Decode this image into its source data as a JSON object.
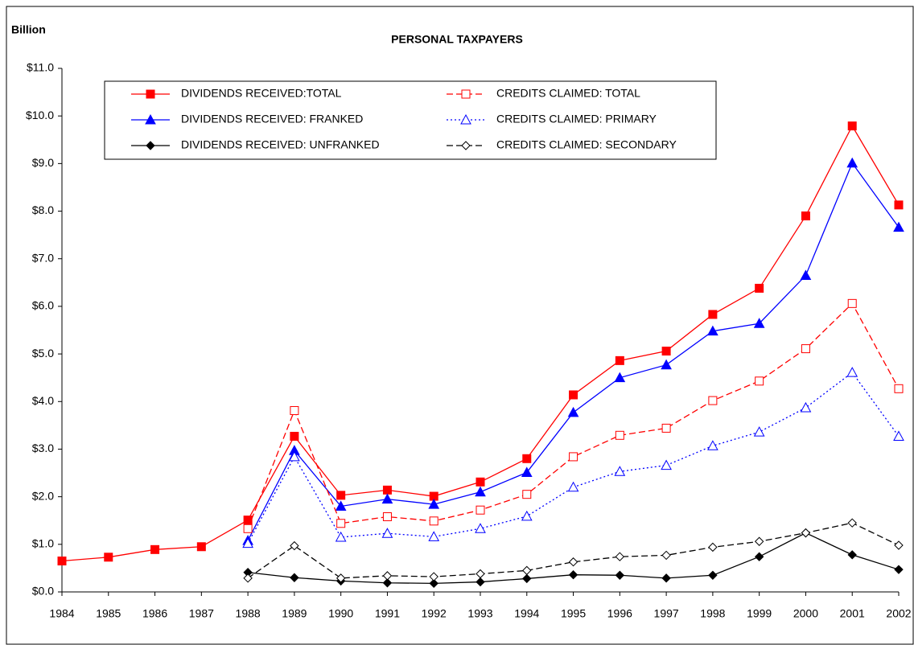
{
  "chart_data": {
    "type": "line",
    "title": "PERSONAL TAXPAYERS",
    "y_label": "Billion",
    "categories": [
      "1984",
      "1985",
      "1986",
      "1987",
      "1988",
      "1989",
      "1990",
      "1991",
      "1992",
      "1993",
      "1994",
      "1995",
      "1996",
      "1997",
      "1998",
      "1999",
      "2000",
      "2001",
      "2002"
    ],
    "series": [
      {
        "name": "DIVIDENDS RECEIVED:TOTAL",
        "color": "#ff0000",
        "marker": "square",
        "filled": true,
        "dash": "solid",
        "values": [
          0.65,
          0.73,
          0.89,
          0.95,
          1.51,
          3.27,
          2.03,
          2.14,
          2.01,
          2.31,
          2.8,
          4.14,
          4.86,
          5.06,
          5.83,
          6.38,
          7.9,
          9.79,
          8.13
        ]
      },
      {
        "name": "DIVIDENDS RECEIVED: FRANKED",
        "color": "#0000ff",
        "marker": "triangle",
        "filled": true,
        "dash": "solid",
        "values": [
          null,
          null,
          null,
          null,
          1.08,
          2.97,
          1.8,
          1.95,
          1.84,
          2.1,
          2.51,
          3.77,
          4.5,
          4.77,
          5.48,
          5.64,
          6.65,
          9.01,
          7.66
        ]
      },
      {
        "name": "DIVIDENDS RECEIVED: UNFRANKED",
        "color": "#000000",
        "marker": "diamond",
        "filled": true,
        "dash": "solid",
        "values": [
          null,
          null,
          null,
          null,
          0.41,
          0.3,
          0.23,
          0.19,
          0.18,
          0.21,
          0.28,
          0.36,
          0.35,
          0.29,
          0.35,
          0.74,
          1.24,
          0.78,
          0.47
        ]
      },
      {
        "name": "CREDITS CLAIMED: TOTAL",
        "color": "#ff0000",
        "marker": "square",
        "filled": false,
        "dash": "dashed",
        "values": [
          null,
          null,
          null,
          null,
          1.33,
          3.81,
          1.44,
          1.58,
          1.49,
          1.72,
          2.05,
          2.84,
          3.29,
          3.44,
          4.02,
          4.43,
          5.11,
          6.06,
          4.27
        ]
      },
      {
        "name": "CREDITS CLAIMED: PRIMARY",
        "color": "#0000ff",
        "marker": "triangle",
        "filled": false,
        "dash": "dotted",
        "values": [
          null,
          null,
          null,
          null,
          1.02,
          2.84,
          1.15,
          1.23,
          1.16,
          1.33,
          1.59,
          2.2,
          2.53,
          2.66,
          3.07,
          3.36,
          3.87,
          4.61,
          3.27
        ]
      },
      {
        "name": "CREDITS CLAIMED: SECONDARY",
        "color": "#000000",
        "marker": "diamond",
        "filled": false,
        "dash": "dashed",
        "values": [
          null,
          null,
          null,
          null,
          0.29,
          0.97,
          0.29,
          0.34,
          0.32,
          0.38,
          0.45,
          0.63,
          0.74,
          0.77,
          0.94,
          1.06,
          1.24,
          1.45,
          0.98
        ]
      }
    ],
    "ylim": [
      0,
      11
    ],
    "yticks": [
      {
        "value": 0,
        "label": "$0.0"
      },
      {
        "value": 1,
        "label": "$1.0"
      },
      {
        "value": 2,
        "label": "$2.0"
      },
      {
        "value": 3,
        "label": "$3.0"
      },
      {
        "value": 4,
        "label": "$4.0"
      },
      {
        "value": 5,
        "label": "$5.0"
      },
      {
        "value": 6,
        "label": "$6.0"
      },
      {
        "value": 7,
        "label": "$7.0"
      },
      {
        "value": 8,
        "label": "$8.0"
      },
      {
        "value": 9,
        "label": "$9.0"
      },
      {
        "value": 10,
        "label": "$10.0"
      },
      {
        "value": 11,
        "label": "$11.0"
      }
    ],
    "grid": false
  }
}
